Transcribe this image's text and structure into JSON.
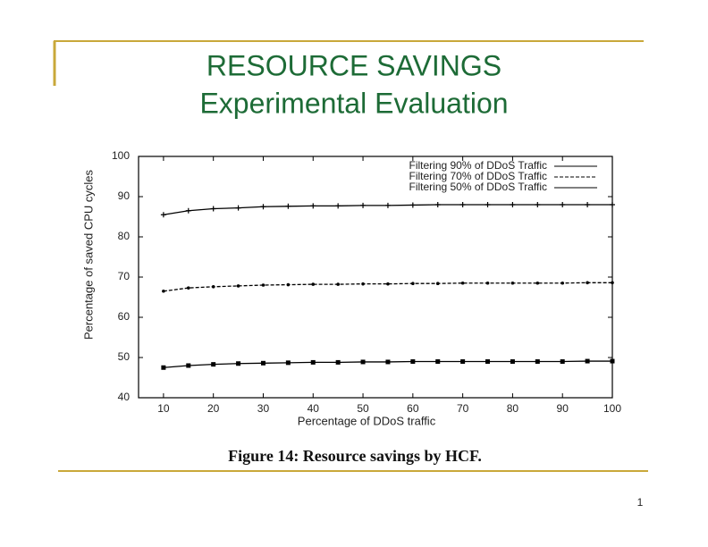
{
  "slide": {
    "title": [
      "RESOURCE SAVINGS",
      "Experimental Evaluation"
    ],
    "caption": "Figure 14: Resource savings by HCF.",
    "page_number": "1"
  },
  "chart_data": {
    "type": "line",
    "x_label": "Percentage of DDoS traffic",
    "y_label": "Percentage of saved CPU cycles",
    "x": [
      10,
      15,
      20,
      25,
      30,
      35,
      40,
      45,
      50,
      55,
      60,
      65,
      70,
      75,
      80,
      85,
      90,
      95,
      100
    ],
    "series": [
      {
        "name": "Filtering 90% of DDoS Traffic",
        "color": "#000000",
        "line_style": "solid",
        "marker": "plus",
        "values": [
          85.5,
          86.5,
          87,
          87.2,
          87.5,
          87.6,
          87.7,
          87.7,
          87.8,
          87.8,
          87.9,
          88,
          88,
          88,
          88,
          88,
          88,
          88,
          88
        ]
      },
      {
        "name": "Filtering 70% of DDoS Traffic",
        "color": "#000000",
        "line_style": "dashed",
        "marker": "dot",
        "values": [
          66.5,
          67.3,
          67.6,
          67.8,
          68,
          68.1,
          68.2,
          68.2,
          68.3,
          68.3,
          68.4,
          68.4,
          68.5,
          68.5,
          68.5,
          68.5,
          68.5,
          68.6,
          68.6
        ]
      },
      {
        "name": "Filtering 50% of DDoS Traffic",
        "color": "#000000",
        "line_style": "solid",
        "marker": "square",
        "values": [
          47.5,
          48,
          48.3,
          48.5,
          48.6,
          48.7,
          48.8,
          48.8,
          48.9,
          48.9,
          49,
          49,
          49,
          49,
          49,
          49,
          49,
          49.1,
          49.1
        ]
      }
    ],
    "xlim": [
      5,
      100
    ],
    "xticks": [
      10,
      20,
      30,
      40,
      50,
      60,
      70,
      80,
      90,
      100
    ],
    "ylim": [
      40,
      100
    ],
    "yticks": [
      40,
      50,
      60,
      70,
      80,
      90,
      100
    ],
    "legend": "top-right"
  }
}
